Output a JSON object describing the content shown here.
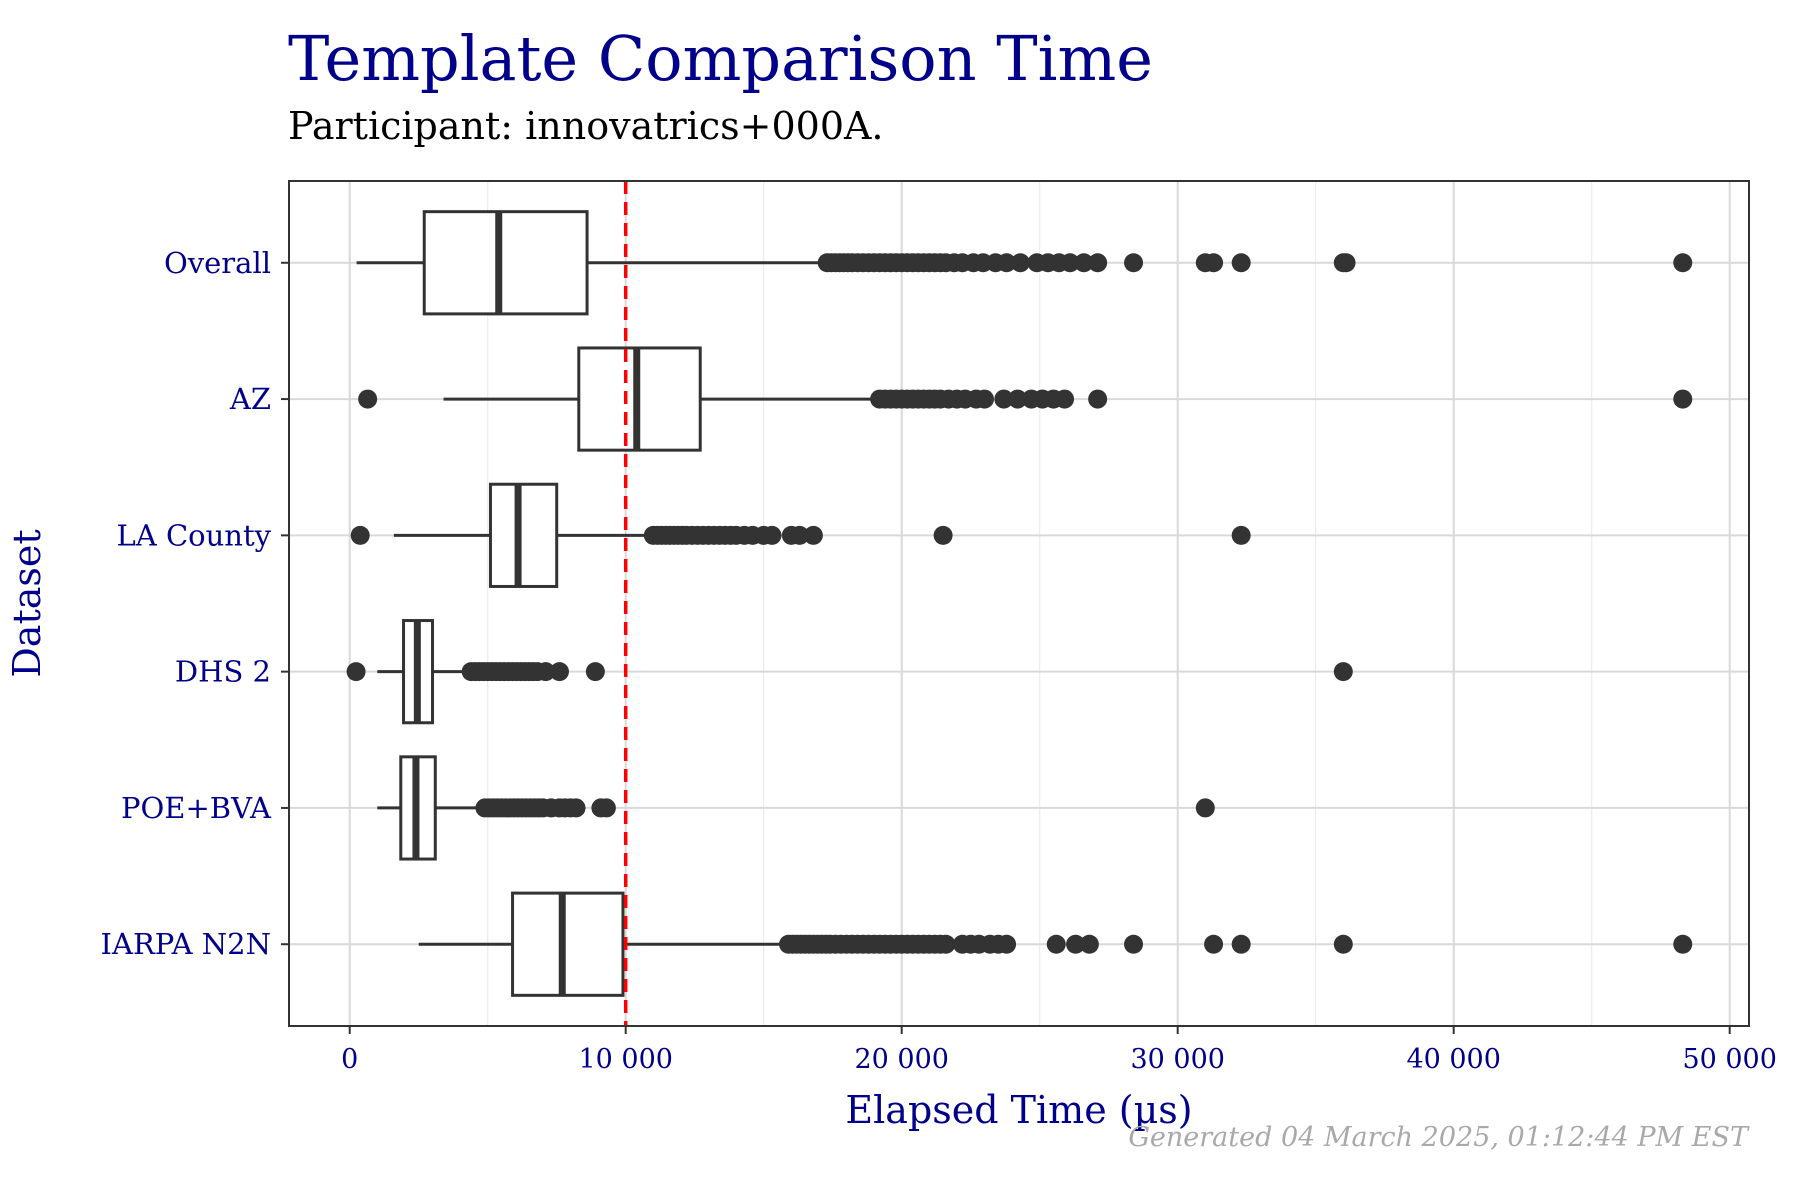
{
  "chart_data": {
    "type": "boxplot",
    "orientation": "horizontal",
    "title": "Template Comparison Time",
    "subtitle": "Participant: innovatrics+000A.",
    "xlabel": "Elapsed Time (µs)",
    "ylabel": "Dataset",
    "xlim": [
      -2200,
      50700
    ],
    "x_ticks": [
      {
        "value": 0,
        "label": "0"
      },
      {
        "value": 10000,
        "label": "10 000"
      },
      {
        "value": 20000,
        "label": "20 000"
      },
      {
        "value": 30000,
        "label": "30 000"
      },
      {
        "value": 40000,
        "label": "40 000"
      },
      {
        "value": 50000,
        "label": "50 000"
      }
    ],
    "grid": true,
    "reference_line": {
      "x": 10000,
      "color": "#ff0000",
      "style": "dashed"
    },
    "categories": [
      "Overall",
      "AZ",
      "LA County",
      "DHS 2",
      "POE+BVA",
      "IARPA N2N"
    ],
    "boxes": [
      {
        "name": "Overall",
        "whisker_low": 250,
        "q1": 2700,
        "median": 5400,
        "q3": 8600,
        "whisker_high": 17300,
        "outliers": [
          17300,
          17450,
          17600,
          17750,
          17900,
          18050,
          18200,
          18400,
          18600,
          18800,
          19000,
          19200,
          19400,
          19600,
          19800,
          20000,
          20200,
          20400,
          20600,
          20800,
          21000,
          21200,
          21400,
          21600,
          21900,
          22200,
          22600,
          22950,
          23400,
          23800,
          24300,
          24900,
          25300,
          25700,
          26100,
          26600,
          27100,
          28400,
          31000,
          31300,
          32300,
          36000,
          36100,
          48300
        ]
      },
      {
        "name": "AZ",
        "whisker_low": 3400,
        "q1": 8300,
        "median": 10400,
        "q3": 12700,
        "whisker_high": 19200,
        "outliers": [
          650,
          19200,
          19400,
          19600,
          19800,
          20000,
          20200,
          20400,
          20600,
          20800,
          21000,
          21200,
          21400,
          21700,
          22000,
          22300,
          22700,
          23000,
          23700,
          24200,
          24700,
          25100,
          25500,
          25900,
          27100,
          48300
        ]
      },
      {
        "name": "LA County",
        "whisker_low": 1600,
        "q1": 5100,
        "median": 6100,
        "q3": 7500,
        "whisker_high": 11000,
        "outliers": [
          380,
          11000,
          11150,
          11300,
          11450,
          11600,
          11750,
          11900,
          12050,
          12200,
          12400,
          12600,
          12800,
          13000,
          13200,
          13400,
          13600,
          13800,
          14000,
          14300,
          14600,
          15000,
          15300,
          16000,
          16300,
          16800,
          21500,
          32300
        ]
      },
      {
        "name": "DHS 2",
        "whisker_low": 1000,
        "q1": 1950,
        "median": 2450,
        "q3": 3000,
        "whisker_high": 4300,
        "outliers": [
          230,
          4400,
          4550,
          4700,
          4850,
          5000,
          5150,
          5300,
          5450,
          5600,
          5750,
          5900,
          6050,
          6200,
          6350,
          6500,
          6650,
          6800,
          7100,
          7600,
          8900,
          36000
        ]
      },
      {
        "name": "POE+BVA",
        "whisker_low": 1000,
        "q1": 1850,
        "median": 2400,
        "q3": 3100,
        "whisker_high": 4800,
        "outliers": [
          4900,
          5050,
          5200,
          5350,
          5500,
          5650,
          5800,
          5950,
          6100,
          6250,
          6400,
          6550,
          6700,
          6850,
          7000,
          7300,
          7600,
          7800,
          8000,
          8200,
          9100,
          9300,
          31000
        ]
      },
      {
        "name": "IARPA N2N",
        "whisker_low": 2500,
        "q1": 5900,
        "median": 7700,
        "q3": 9900,
        "whisker_high": 15900,
        "outliers": [
          15900,
          16050,
          16200,
          16350,
          16500,
          16650,
          16800,
          16950,
          17100,
          17250,
          17400,
          17600,
          17800,
          18000,
          18200,
          18400,
          18600,
          18800,
          19000,
          19200,
          19400,
          19600,
          19800,
          20000,
          20200,
          20400,
          20600,
          20800,
          21000,
          21200,
          21400,
          21600,
          22200,
          22500,
          22800,
          23200,
          23500,
          23800,
          25600,
          26300,
          26800,
          28400,
          31300,
          32300,
          36000,
          48300
        ]
      }
    ]
  },
  "footer": "Generated 04 March 2025, 01:12:44 PM EST",
  "colors": {
    "title": "#00008b",
    "axis_text": "#00008b",
    "box_stroke": "#333333",
    "reference": "#ff0000",
    "grid": "#d9d9d9",
    "footer": "#a9a9a9"
  }
}
